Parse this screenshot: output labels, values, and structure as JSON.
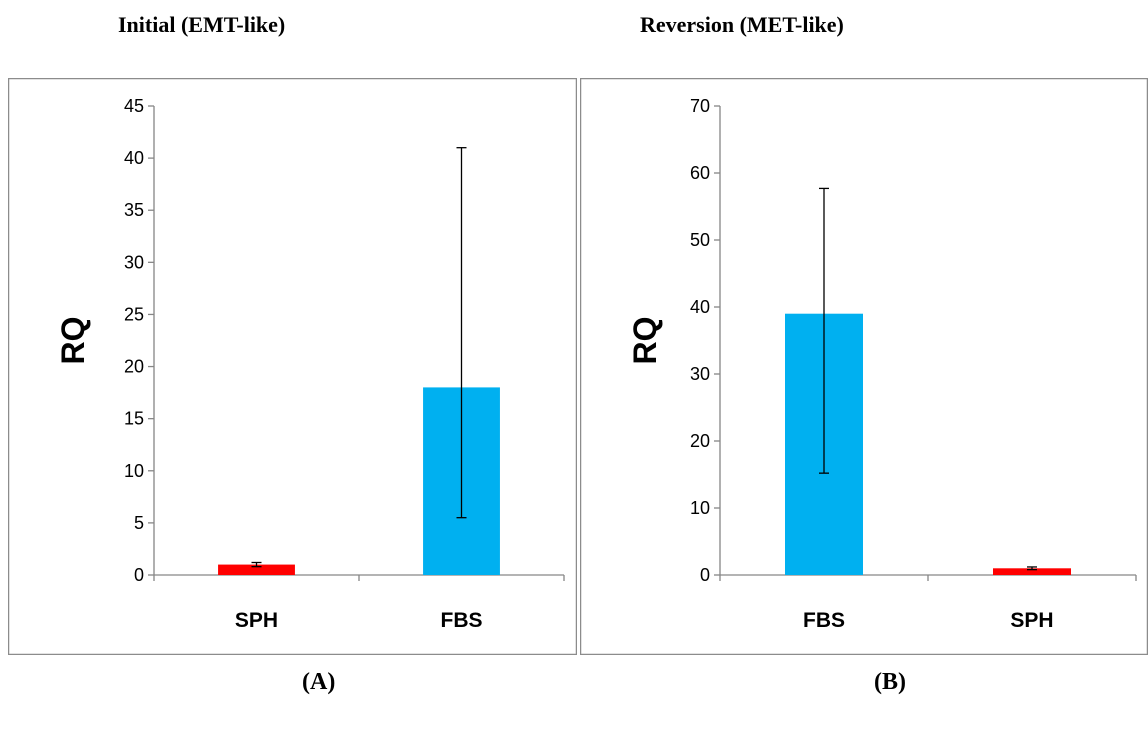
{
  "chart_data": [
    {
      "type": "bar",
      "title": "Initial (EMT-like)",
      "panel_label": "(A)",
      "ylabel": "RQ",
      "ylim": [
        0,
        45
      ],
      "yticks": [
        "0",
        "5",
        "10",
        "15",
        "20",
        "25",
        "30",
        "35",
        "40",
        "45"
      ],
      "categories": [
        "SPH",
        "FBS"
      ],
      "values": [
        1.0,
        18.0
      ],
      "error_low": [
        0.8,
        5.5
      ],
      "error_high": [
        1.2,
        41.0
      ],
      "colors": [
        "#ff0000",
        "#00b0f0"
      ],
      "grid": false
    },
    {
      "type": "bar",
      "title": "Reversion (MET-like)",
      "panel_label": "(B)",
      "ylabel": "RQ",
      "ylim": [
        0,
        70
      ],
      "yticks": [
        "0",
        "10",
        "20",
        "30",
        "40",
        "50",
        "60",
        "70"
      ],
      "categories": [
        "FBS",
        "SPH"
      ],
      "values": [
        39.0,
        1.0
      ],
      "error_low": [
        15.2,
        0.8
      ],
      "error_high": [
        57.7,
        1.2
      ],
      "colors": [
        "#00b0f0",
        "#ff0000"
      ],
      "grid": false
    }
  ]
}
